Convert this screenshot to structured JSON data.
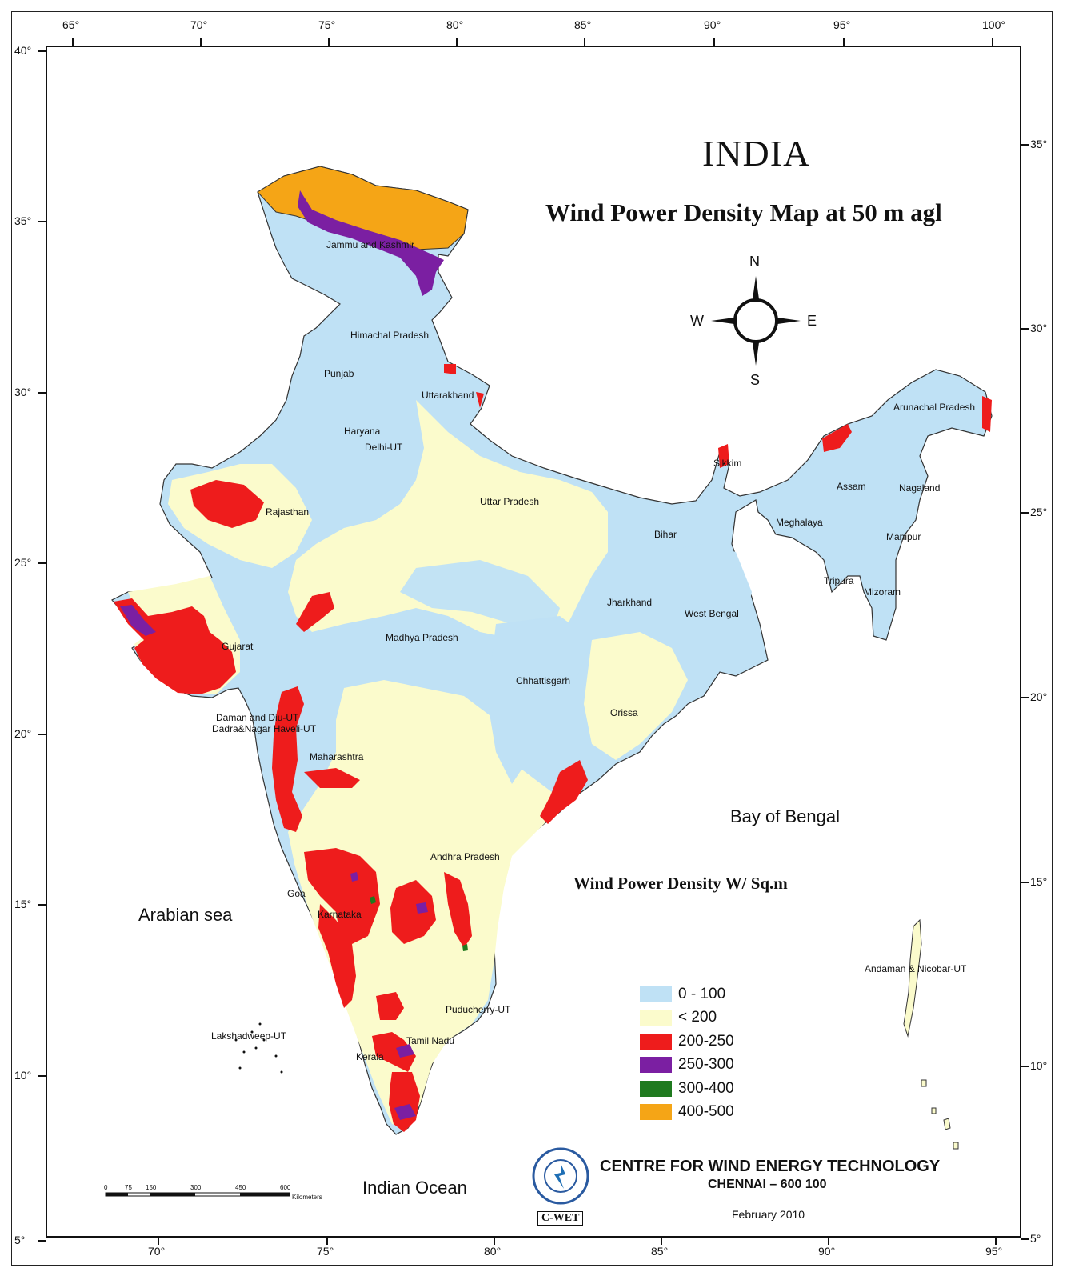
{
  "map": {
    "title": "INDIA",
    "subtitle": "Wind Power Density  Map at 50 m agl",
    "legend_title": "Wind Power Density W/ Sq.m",
    "legend": [
      {
        "label": "0 - 100",
        "color": "#bfe1f5"
      },
      {
        "label": "< 200",
        "color": "#fbfbcc"
      },
      {
        "label": "200-250",
        "color": "#ee1c1c"
      },
      {
        "label": "250-300",
        "color": "#7b1fa2"
      },
      {
        "label": "300-400",
        "color": "#1f7a1f"
      },
      {
        "label": "400-500",
        "color": "#f5a516"
      }
    ],
    "compass": {
      "n": "N",
      "e": "E",
      "s": "S",
      "w": "W"
    },
    "top_longitude_ticks": [
      "65°",
      "70°",
      "75°",
      "80°",
      "85°",
      "90°",
      "95°",
      "100°"
    ],
    "bottom_longitude_ticks": [
      "70°",
      "75°",
      "80°",
      "85°",
      "90°",
      "95°"
    ],
    "left_latitude_ticks": [
      "40°",
      "35°",
      "30°",
      "25°",
      "20°",
      "15°",
      "10°",
      "5°"
    ],
    "right_latitude_ticks": [
      "35°",
      "30°",
      "25°",
      "20°",
      "15°",
      "10°",
      "5°"
    ],
    "water_labels": {
      "arabian": "Arabian sea",
      "bengal": "Bay of Bengal",
      "indian": "Indian Ocean"
    },
    "states": [
      "Jammu and Kashmir",
      "Himachal Pradesh",
      "Punjab",
      "Uttarakhand",
      "Haryana",
      "Delhi-UT",
      "Rajasthan",
      "Uttar Pradesh",
      "Sikkim",
      "Arunachal Pradesh",
      "Assam",
      "Nagaland",
      "Meghalaya",
      "Manipur",
      "Bihar",
      "Tripura",
      "Mizoram",
      "Jharkhand",
      "West Bengal",
      "Madhya Pradesh",
      "Gujarat",
      "Chhattisgarh",
      "Orissa",
      "Daman and Diu-UT",
      "Dadra&Nagar Haveli-UT",
      "Maharashtra",
      "Andhra Pradesh",
      "Goa",
      "Karnataka",
      "Puducherry-UT",
      "Tamil Nadu",
      "Kerala",
      "Lakshadweep-UT",
      "Andaman & Nicobar-UT"
    ],
    "scale_ticks": [
      "0",
      "75",
      "150",
      "300",
      "450",
      "600"
    ],
    "scale_unit": "Kilometers"
  },
  "org": {
    "name": "CENTRE FOR WIND ENERGY TECHNOLOGY",
    "city": "CHENNAI – 600 100",
    "date": "February 2010",
    "logo_text": "C-WET"
  }
}
